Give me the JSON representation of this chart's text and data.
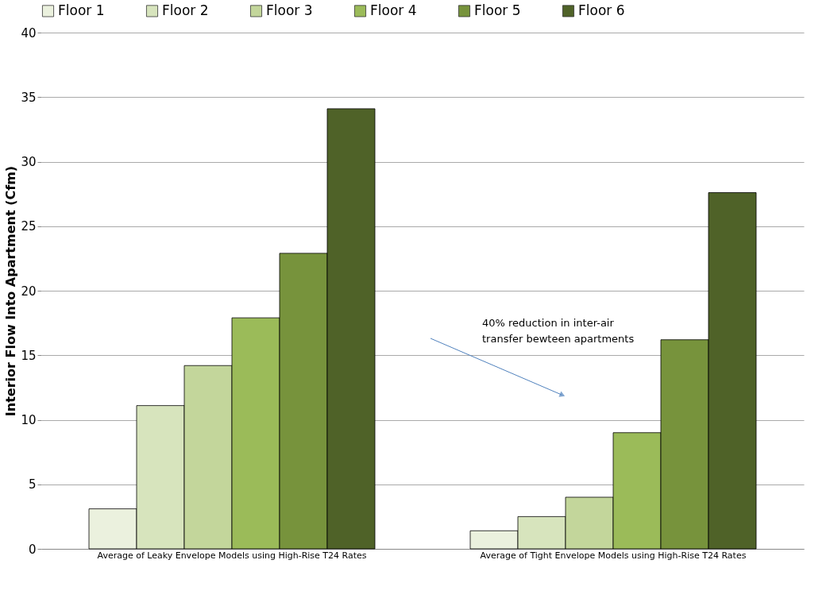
{
  "chart_data": {
    "type": "bar",
    "ylabel": "Interior Flow Into Apartment (Cfm)",
    "categories": [
      "Average of Leaky Envelope Models using High-Rise T24 Rates",
      "Average of Tight Envelope Models using High-Rise T24 Rates"
    ],
    "series": [
      {
        "name": "Floor 1",
        "color": "#ebf1de",
        "values": [
          3.1,
          1.4
        ]
      },
      {
        "name": "Floor 2",
        "color": "#d7e4bd",
        "values": [
          11.1,
          2.5
        ]
      },
      {
        "name": "Floor 3",
        "color": "#c3d69b",
        "values": [
          14.2,
          4.0
        ]
      },
      {
        "name": "Floor 4",
        "color": "#9bbb59",
        "values": [
          17.9,
          9.0
        ]
      },
      {
        "name": "Floor 5",
        "color": "#77933c",
        "values": [
          22.9,
          16.2
        ]
      },
      {
        "name": "Floor 6",
        "color": "#4f6228",
        "values": [
          34.1,
          27.6
        ]
      }
    ],
    "ylim": [
      0,
      40
    ],
    "yticks": [
      0,
      5,
      10,
      15,
      20,
      25,
      30,
      35,
      40
    ],
    "grid": "y",
    "legend": "top",
    "annotations": [
      "40% reduction in inter-air\ntransfer bewteen apartments"
    ]
  }
}
